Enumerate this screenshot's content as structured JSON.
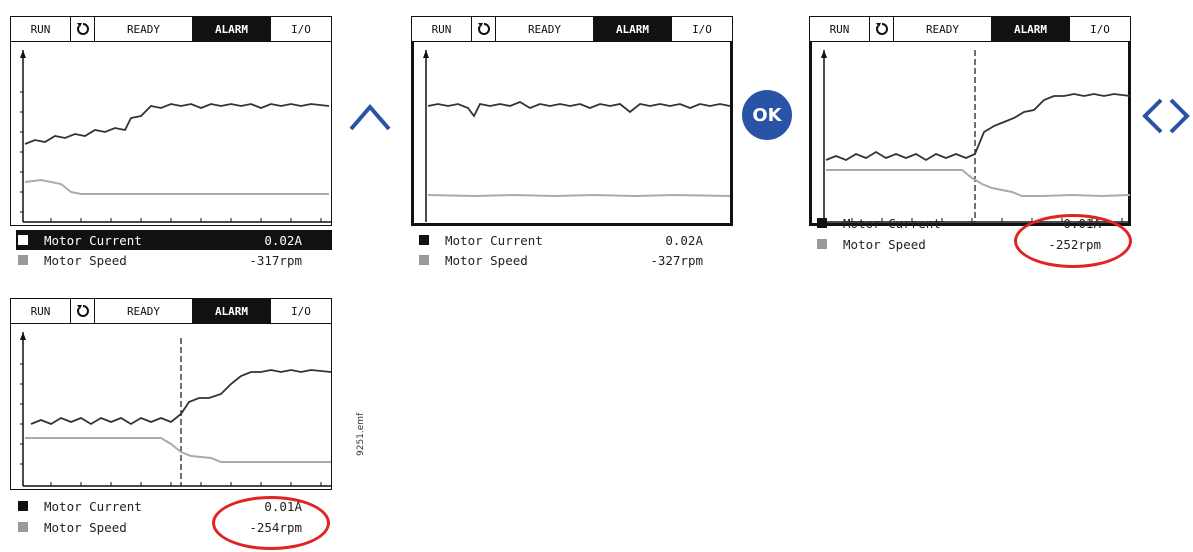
{
  "status_bar": {
    "run": "RUN",
    "ready": "READY",
    "alarm": "ALARM",
    "io": "I/O",
    "direction_icon": "rotation-arrow-icon"
  },
  "legend": {
    "current_label": "Motor Current",
    "speed_label": "Motor Speed"
  },
  "panels": [
    {
      "current_value": "0.02A",
      "speed_value": "-317rpm"
    },
    {
      "current_value": "0.02A",
      "speed_value": "-327rpm"
    },
    {
      "current_value": "0.01A",
      "speed_value": "-252rpm"
    },
    {
      "current_value": "0.01A",
      "speed_value": "-254rpm"
    }
  ],
  "navigation": {
    "up_icon": "chevron-up-icon",
    "ok_label": "OK",
    "left_right_icon": "chevron-left-right-icon"
  },
  "figure_label": "9251.emf",
  "colors": {
    "highlight": "#e32222",
    "ok_button": "#2953a6",
    "chevron": "#2953a6"
  }
}
